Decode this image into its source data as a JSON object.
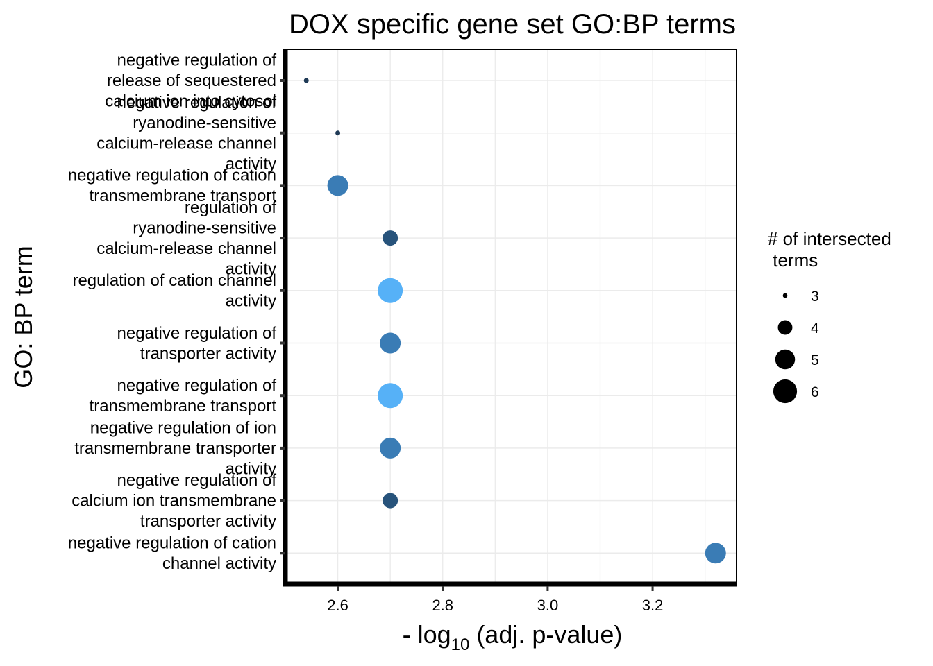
{
  "chart_data": {
    "type": "scatter",
    "title": "DOX specific gene set GO:BP terms",
    "xlabel_prefix": "- log",
    "xlabel_subscript": "10",
    "xlabel_suffix": " (adj. p-value)",
    "ylabel": "GO: BP term",
    "xlim": [
      2.5,
      3.36
    ],
    "x_ticks": [
      2.6,
      2.8,
      3.0,
      3.2
    ],
    "x_tick_labels": [
      "2.6",
      "2.8",
      "3.0",
      "3.2"
    ],
    "grid": true,
    "legend": {
      "title_lines": [
        "# of intersected",
        " terms"
      ],
      "position": "right",
      "sizes": [
        3,
        4,
        5,
        6
      ],
      "labels": [
        "3",
        "4",
        "5",
        "6"
      ]
    },
    "points": [
      {
        "term_lines": [
          "negative regulation of",
          "release of sequestered",
          "calcium ion into cytosol"
        ],
        "x": 2.54,
        "size": 3,
        "color": "#1f3a56"
      },
      {
        "term_lines": [
          "negative regulation of",
          "ryanodine-sensitive",
          "calcium-release channel",
          "activity"
        ],
        "x": 2.6,
        "size": 3,
        "color": "#1f3a56"
      },
      {
        "term_lines": [
          "negative regulation of cation",
          "transmembrane transport"
        ],
        "x": 2.6,
        "size": 5,
        "color": "#3a7cb5"
      },
      {
        "term_lines": [
          "regulation of",
          "ryanodine-sensitive",
          "calcium-release channel",
          "activity"
        ],
        "x": 2.7,
        "size": 4,
        "color": "#27537b"
      },
      {
        "term_lines": [
          "regulation of cation channel",
          "activity"
        ],
        "x": 2.7,
        "size": 6,
        "color": "#56b1f7"
      },
      {
        "term_lines": [
          "negative regulation of",
          "transporter activity"
        ],
        "x": 2.7,
        "size": 5,
        "color": "#3a7cb5"
      },
      {
        "term_lines": [
          "negative regulation of",
          "transmembrane transport"
        ],
        "x": 2.7,
        "size": 6,
        "color": "#56b1f7"
      },
      {
        "term_lines": [
          "negative regulation of ion",
          "transmembrane transporter",
          "activity"
        ],
        "x": 2.7,
        "size": 5,
        "color": "#3a7cb5"
      },
      {
        "term_lines": [
          "negative regulation of",
          "calcium ion transmembrane",
          "transporter activity"
        ],
        "x": 2.7,
        "size": 4,
        "color": "#27537b"
      },
      {
        "term_lines": [
          "negative regulation of cation",
          "channel activity"
        ],
        "x": 3.32,
        "size": 5,
        "color": "#3a7cb5"
      }
    ]
  }
}
